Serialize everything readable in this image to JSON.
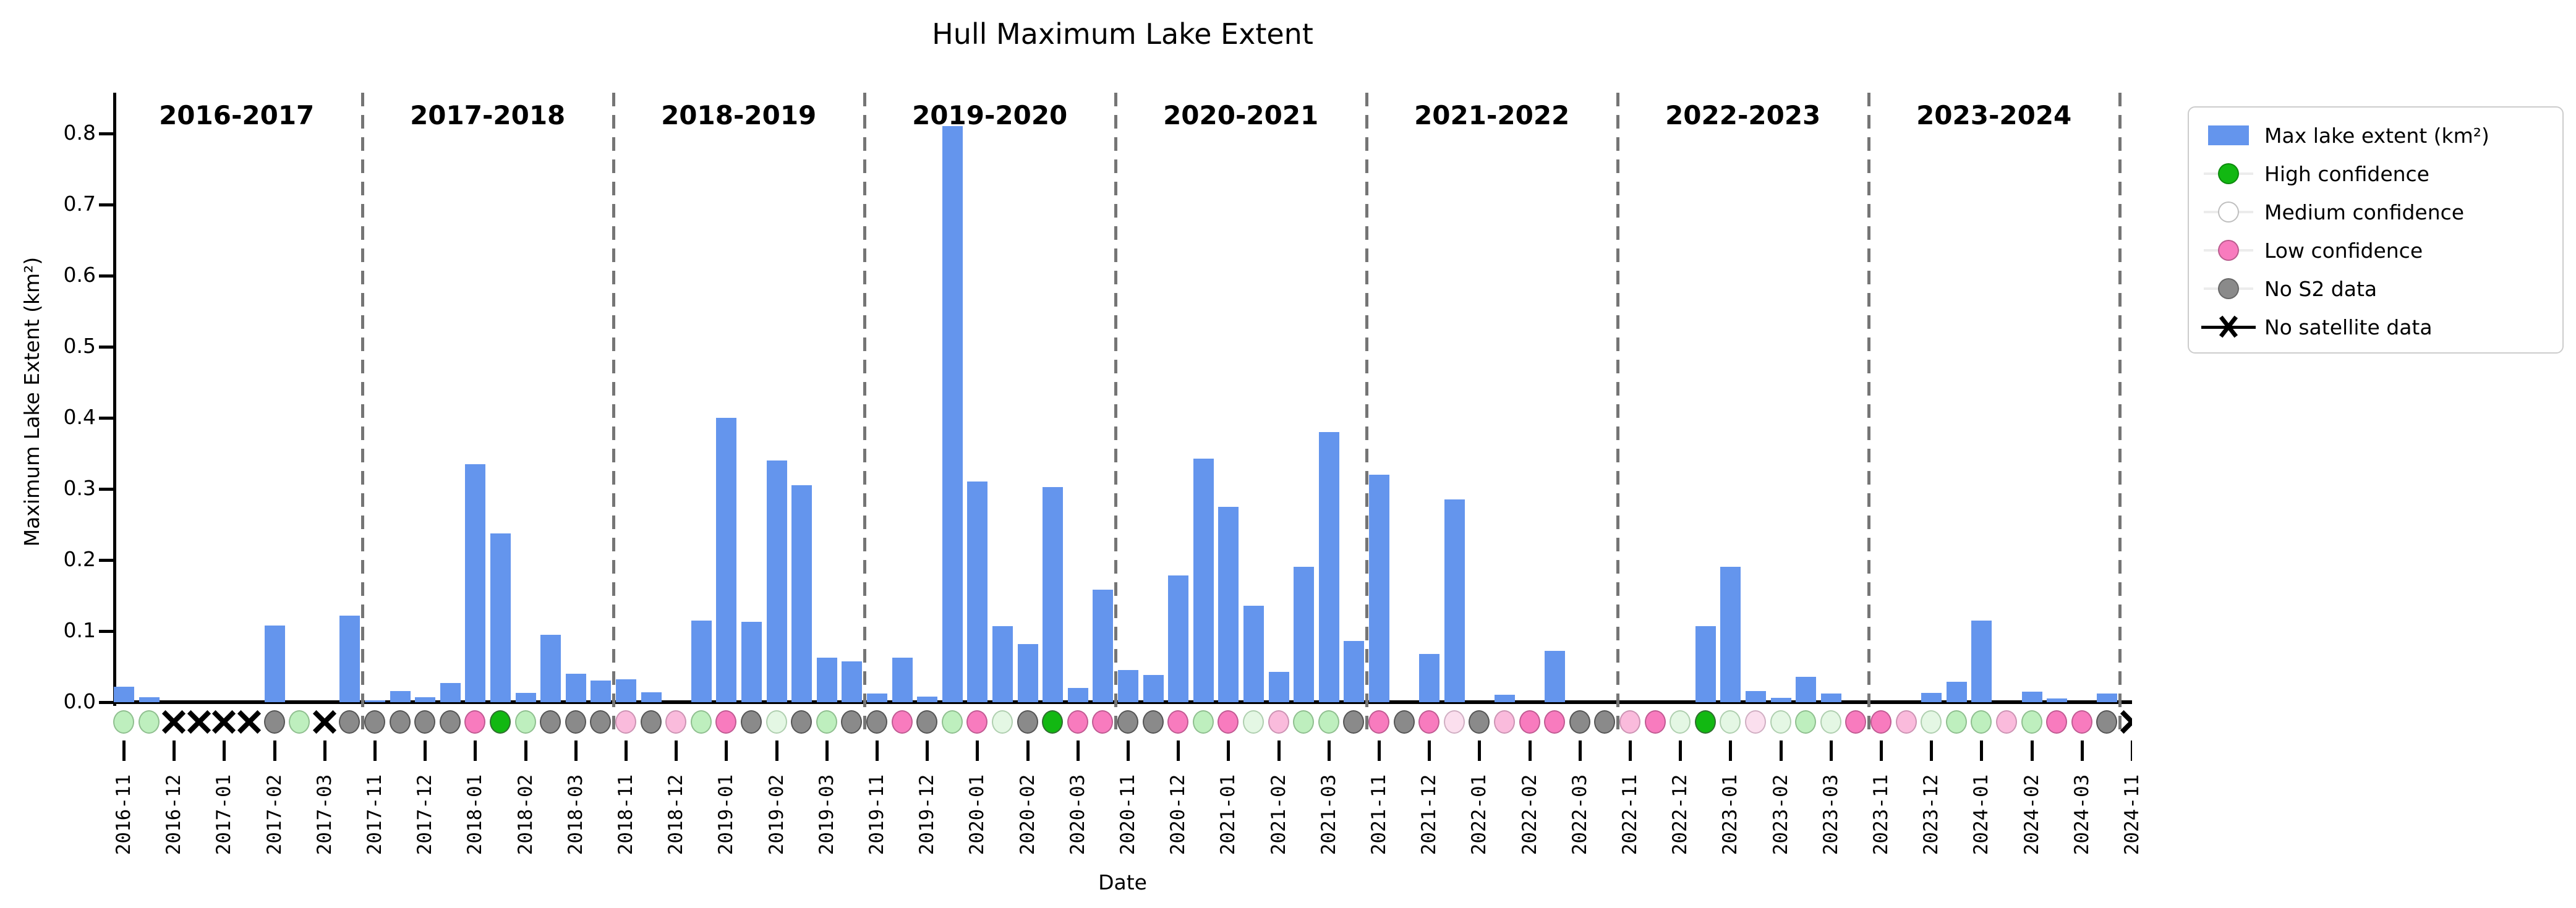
{
  "title": "Hull Maximum Lake Extent",
  "axes": {
    "x_label": "Date",
    "y_label": "Maximum Lake Extent (km²)",
    "y_ticks": [
      "0.0",
      "0.1",
      "0.2",
      "0.3",
      "0.4",
      "0.5",
      "0.6",
      "0.7",
      "0.8"
    ]
  },
  "legend": {
    "items": [
      {
        "label": "Max lake extent (km²)",
        "type": "bar",
        "color": "#6495ED"
      },
      {
        "label": "High confidence",
        "type": "dot",
        "color": "#12B812"
      },
      {
        "label": "Medium confidence",
        "type": "dot",
        "color": "#FFFFFF"
      },
      {
        "label": "Low confidence",
        "type": "dot",
        "color": "#F87BBE"
      },
      {
        "label": "No S2 data",
        "type": "dot",
        "color": "#8A8A8A"
      },
      {
        "label": "No satellite data",
        "type": "x",
        "color": "#000000"
      }
    ]
  },
  "chart_data": {
    "type": "bar",
    "title": "Hull Maximum Lake Extent",
    "xlabel": "Date",
    "ylabel": "Maximum Lake Extent (km²)",
    "ylim": [
      0,
      0.85
    ],
    "bar_color": "#6495ED",
    "grid": false,
    "legend_position": "upper right, outside axes",
    "season_labels": [
      "2016-2017",
      "2017-2018",
      "2018-2019",
      "2019-2020",
      "2020-2021",
      "2021-2022",
      "2022-2023",
      "2023-2024"
    ],
    "x_tick_labels": [
      "2016-11",
      "2016-12",
      "2017-01",
      "2017-02",
      "2017-03",
      "2017-11",
      "2017-12",
      "2018-01",
      "2018-02",
      "2018-03",
      "2018-11",
      "2018-12",
      "2019-01",
      "2019-02",
      "2019-03",
      "2019-11",
      "2019-12",
      "2020-01",
      "2020-02",
      "2020-03",
      "2020-11",
      "2020-12",
      "2021-01",
      "2021-02",
      "2021-03",
      "2021-11",
      "2021-12",
      "2022-01",
      "2022-02",
      "2022-03",
      "2022-11",
      "2022-12",
      "2023-01",
      "2023-02",
      "2023-03",
      "2023-11",
      "2023-12",
      "2024-01",
      "2024-02",
      "2024-03",
      "2024-11"
    ],
    "note": "Two half-month observations per labelled month; tick labels sit under every second bar slot. Dashed vertical lines separate seasons.",
    "values": [
      0.022,
      0.007,
      0,
      0,
      0,
      0,
      0.108,
      0,
      0,
      0.122,
      0.003,
      0.016,
      0.007,
      0.027,
      0.335,
      0.237,
      0.013,
      0.095,
      0.04,
      0.03,
      0.032,
      0.014,
      0,
      0.115,
      0.4,
      0.113,
      0.34,
      0.305,
      0.063,
      0.057,
      0.012,
      0.063,
      0.008,
      0.81,
      0.31,
      0.107,
      0.082,
      0.303,
      0.02,
      0.158,
      0.045,
      0.038,
      0.178,
      0.343,
      0.275,
      0.136,
      0.043,
      0.19,
      0.38,
      0.086,
      0.32,
      0,
      0.068,
      0.285,
      0,
      0.01,
      0,
      0.072,
      0,
      0,
      0,
      0,
      0,
      0.107,
      0.19,
      0.016,
      0.006,
      0.036,
      0.012,
      0,
      0,
      0,
      0.013,
      0.029,
      0.115,
      0,
      0.015,
      0.005,
      0,
      0.012,
      0
    ],
    "confidence_markers": [
      "lightgreen",
      "lightgreen",
      "x",
      "x",
      "x",
      "x",
      "gray",
      "lightgreen",
      "x",
      "gray",
      "gray",
      "gray",
      "gray",
      "gray",
      "pink",
      "green",
      "lightgreen",
      "gray",
      "gray",
      "gray",
      "lightpink",
      "gray",
      "lightpink",
      "lightgreen",
      "pink",
      "gray",
      "palegreen",
      "gray",
      "lightgreen",
      "gray",
      "gray",
      "pink",
      "gray",
      "lightgreen",
      "pink",
      "palegreen",
      "gray",
      "green",
      "pink",
      "pink",
      "gray",
      "gray",
      "pink",
      "lightgreen",
      "pink",
      "palegreen",
      "lightpink",
      "lightgreen",
      "lightgreen",
      "gray",
      "pink",
      "gray",
      "pink",
      "palepink",
      "gray",
      "lightpink",
      "pink",
      "pink",
      "gray",
      "gray",
      "lightpink",
      "pink",
      "palegreen",
      "green",
      "palegreen",
      "palepink",
      "palegreen",
      "lightgreen",
      "palegreen",
      "pink",
      "pink",
      "lightpink",
      "palegreen",
      "lightgreen",
      "lightgreen",
      "lightpink",
      "lightgreen",
      "pink",
      "pink",
      "gray",
      "x"
    ],
    "marker_palette": {
      "green": {
        "fill": "#12B812",
        "edge": "#2F6F2F"
      },
      "lightgreen": {
        "fill": "#BEEFBE",
        "edge": "#8FBF8F"
      },
      "palegreen": {
        "fill": "#E4F7E4",
        "edge": "#AFCFAF"
      },
      "pink": {
        "fill": "#F87BBE",
        "edge": "#C05A92"
      },
      "lightpink": {
        "fill": "#FABBDC",
        "edge": "#CC93B3"
      },
      "palepink": {
        "fill": "#FBDFEE",
        "edge": "#D0AEC2"
      },
      "gray": {
        "fill": "#8A8A8A",
        "edge": "#555555"
      },
      "x": {
        "fill": "#000000",
        "edge": "#000000"
      }
    },
    "separator_color": "#757575"
  }
}
